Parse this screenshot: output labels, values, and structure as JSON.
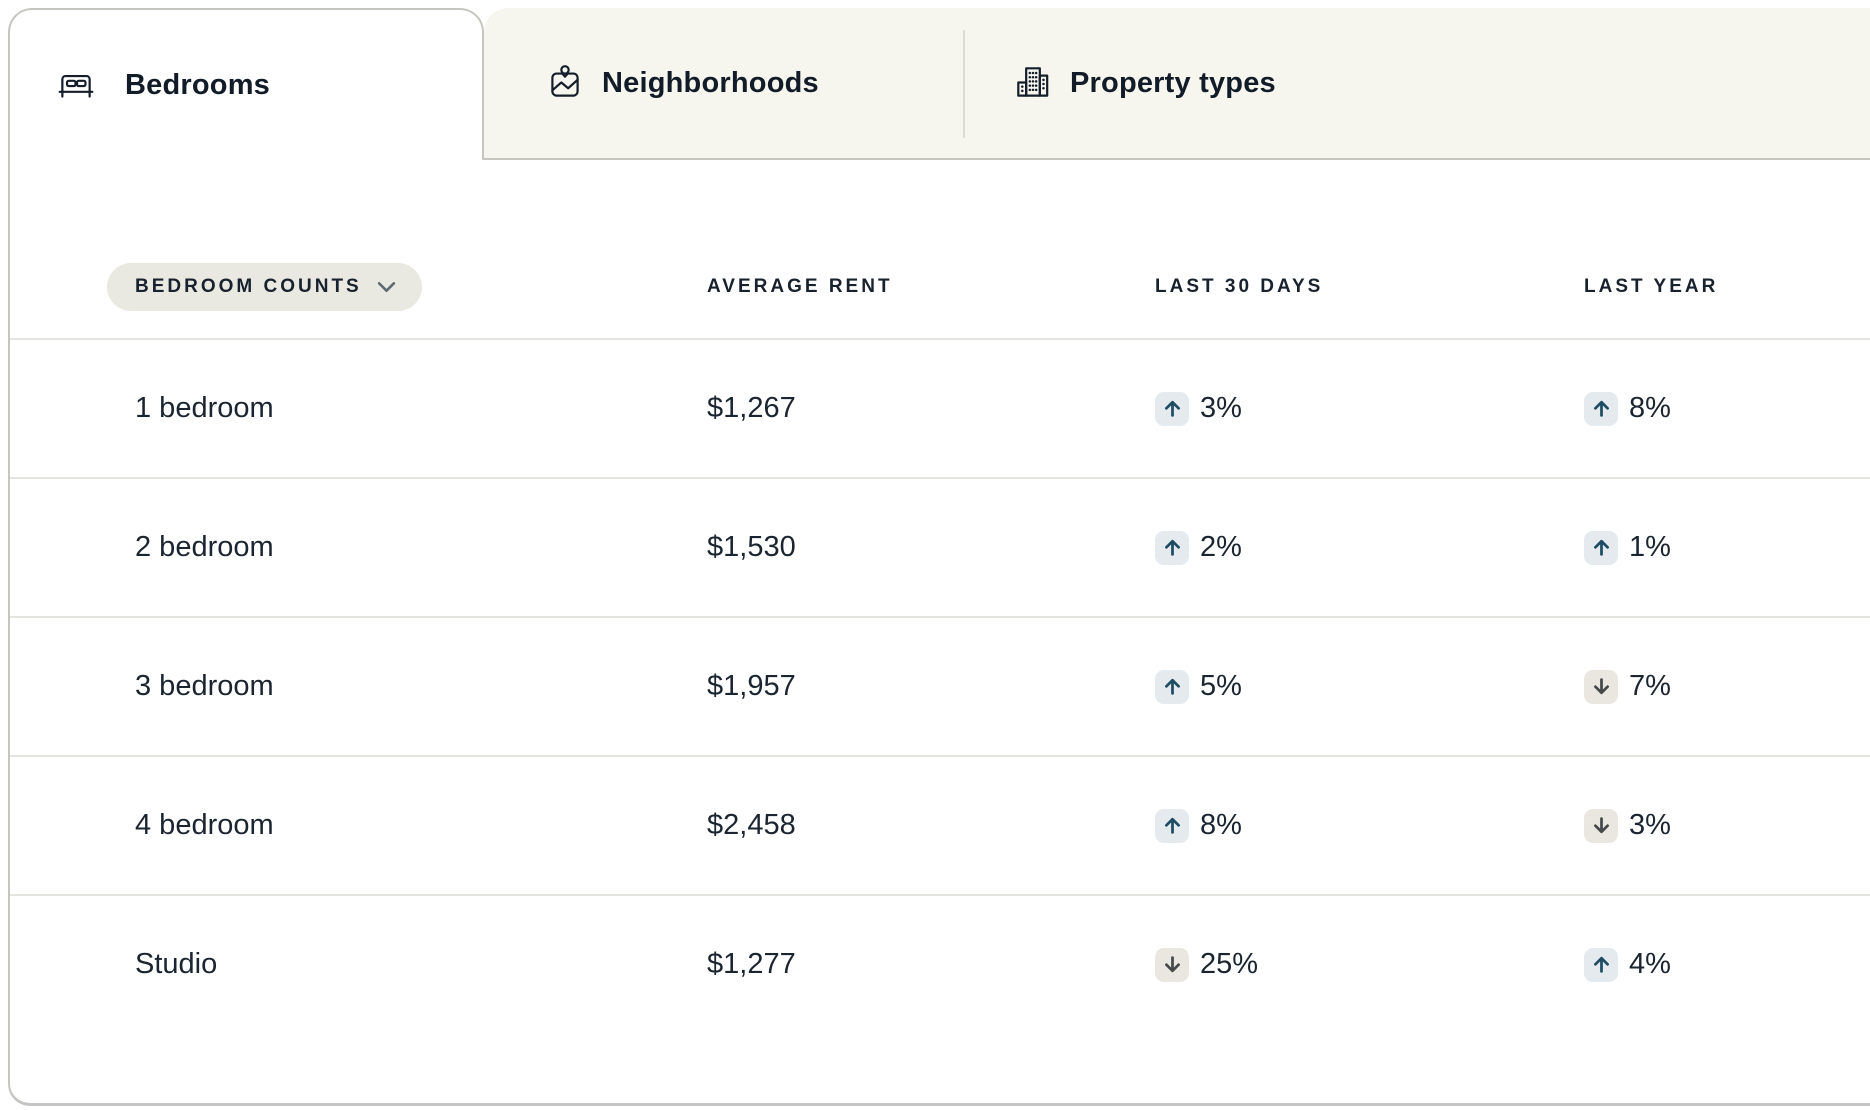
{
  "tabs": [
    {
      "id": "bedrooms",
      "label": "Bedrooms",
      "icon": "bed-icon",
      "active": true
    },
    {
      "id": "neighborhoods",
      "label": "Neighborhoods",
      "icon": "map-icon",
      "active": false
    },
    {
      "id": "property-types",
      "label": "Property types",
      "icon": "buildings-icon",
      "active": false
    }
  ],
  "table": {
    "filter_button": {
      "label": "BEDROOM COUNTS",
      "icon": "chevron-down-icon"
    },
    "columns": [
      "AVERAGE RENT",
      "LAST 30 DAYS",
      "LAST YEAR"
    ],
    "rows": [
      {
        "label": "1 bedroom",
        "average_rent": "$1,267",
        "last_30_days": {
          "direction": "up",
          "value": "3%"
        },
        "last_year": {
          "direction": "up",
          "value": "8%"
        }
      },
      {
        "label": "2 bedroom",
        "average_rent": "$1,530",
        "last_30_days": {
          "direction": "up",
          "value": "2%"
        },
        "last_year": {
          "direction": "up",
          "value": "1%"
        }
      },
      {
        "label": "3 bedroom",
        "average_rent": "$1,957",
        "last_30_days": {
          "direction": "up",
          "value": "5%"
        },
        "last_year": {
          "direction": "down",
          "value": "7%"
        }
      },
      {
        "label": "4 bedroom",
        "average_rent": "$2,458",
        "last_30_days": {
          "direction": "up",
          "value": "8%"
        },
        "last_year": {
          "direction": "down",
          "value": "3%"
        }
      },
      {
        "label": "Studio",
        "average_rent": "$1,277",
        "last_30_days": {
          "direction": "down",
          "value": "25%"
        },
        "last_year": {
          "direction": "up",
          "value": "4%"
        }
      }
    ]
  },
  "colors": {
    "text_primary": "#15202c",
    "tab_strip_bg": "#f7f6ee",
    "panel_bg": "#ffffff",
    "border": "#c6c6c0",
    "row_divider": "#e4e4e0",
    "pill_bg": "#e9e8e1",
    "up_badge_bg": "#e4eaee",
    "up_arrow": "#1d4c63",
    "down_badge_bg": "#e9e7df",
    "down_arrow": "#45494c"
  }
}
